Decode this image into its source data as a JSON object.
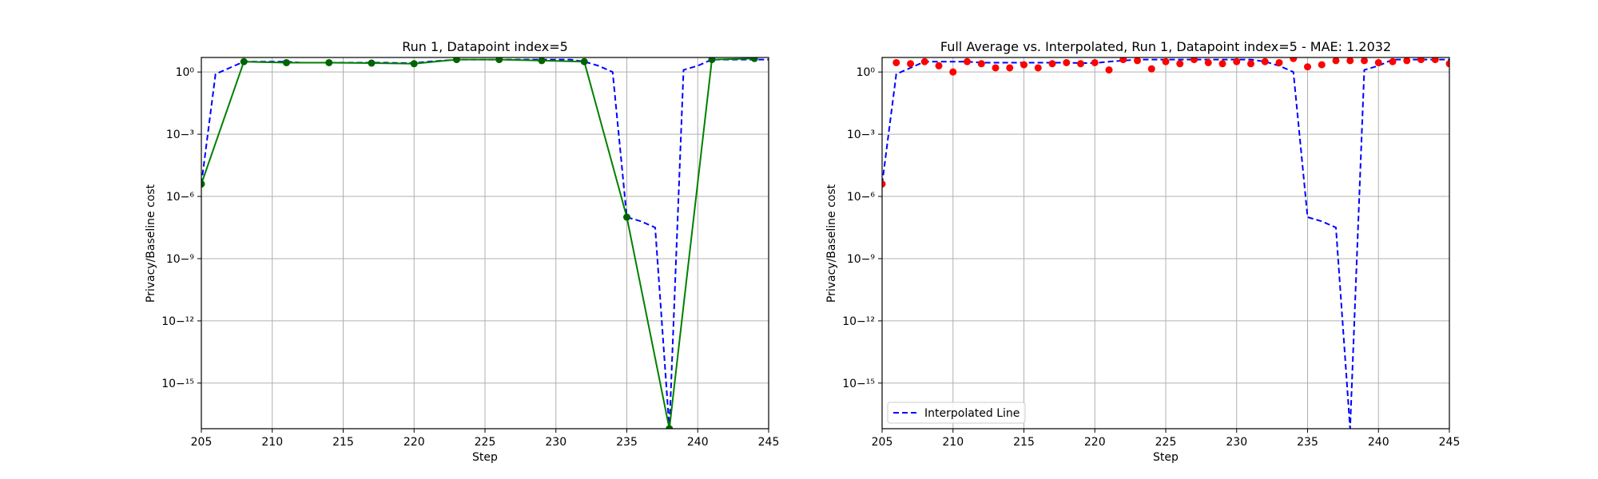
{
  "chart_data": [
    {
      "type": "line",
      "title": "Run 1, Datapoint index=5",
      "xlabel": "Step",
      "ylabel": "Privacy/Baseline cost",
      "xlim": [
        205,
        245
      ],
      "ylim_log10": [
        -17.2,
        0.7
      ],
      "yscale": "log",
      "grid": true,
      "x_ticks": [
        205,
        210,
        215,
        220,
        225,
        230,
        235,
        240,
        245
      ],
      "y_ticks_log10": [
        0,
        -3,
        -6,
        -9,
        -12,
        -15
      ],
      "colors": {
        "interpolated": "#0000ff",
        "sampled": "#008000",
        "markers": "#006400"
      },
      "series": [
        {
          "style": "dashed",
          "color": "#0000ff",
          "x": [
            205,
            206,
            207,
            208,
            209,
            210,
            211,
            212,
            213,
            214,
            215,
            216,
            217,
            218,
            219,
            220,
            221,
            222,
            223,
            224,
            225,
            226,
            227,
            228,
            229,
            230,
            231,
            232,
            233,
            234,
            235,
            236,
            237,
            238,
            239,
            240,
            241,
            242,
            243,
            244,
            245
          ],
          "y_log10": [
            -5.4,
            -0.1,
            0.2,
            0.5,
            0.5,
            0.5,
            0.5,
            0.45,
            0.45,
            0.45,
            0.45,
            0.45,
            0.45,
            0.45,
            0.43,
            0.43,
            0.5,
            0.55,
            0.6,
            0.6,
            0.6,
            0.6,
            0.6,
            0.6,
            0.6,
            0.6,
            0.6,
            0.5,
            0.3,
            0.0,
            -7.0,
            -7.2,
            -7.5,
            -17.2,
            0.1,
            0.3,
            0.6,
            0.6,
            0.6,
            0.6,
            0.6
          ]
        },
        {
          "style": "solid",
          "color": "#008000",
          "marker": "circle",
          "x": [
            205,
            208,
            211,
            214,
            217,
            220,
            223,
            226,
            229,
            232,
            235,
            238,
            241,
            244
          ],
          "y_log10": [
            -5.4,
            0.5,
            0.45,
            0.45,
            0.43,
            0.4,
            0.6,
            0.6,
            0.55,
            0.5,
            -7.0,
            -17.2,
            0.6,
            0.65
          ]
        }
      ]
    },
    {
      "type": "scatter",
      "title": "Full Average vs. Interpolated, Run 1, Datapoint index=5 - MAE: 1.2032",
      "xlabel": "Step",
      "ylabel": "Privacy/Baseline cost",
      "xlim": [
        205,
        245
      ],
      "ylim_log10": [
        -17.2,
        0.7
      ],
      "yscale": "log",
      "grid": true,
      "legend": {
        "placement": "lower-left",
        "entries": [
          "Interpolated Line"
        ]
      },
      "x_ticks": [
        205,
        210,
        215,
        220,
        225,
        230,
        235,
        240,
        245
      ],
      "y_ticks_log10": [
        0,
        -3,
        -6,
        -9,
        -12,
        -15
      ],
      "series": [
        {
          "name": "Interpolated Line",
          "style": "dashed",
          "color": "#0000ff",
          "x": [
            205,
            206,
            207,
            208,
            209,
            210,
            211,
            212,
            213,
            214,
            215,
            216,
            217,
            218,
            219,
            220,
            221,
            222,
            223,
            224,
            225,
            226,
            227,
            228,
            229,
            230,
            231,
            232,
            233,
            234,
            235,
            236,
            237,
            238,
            239,
            240,
            241,
            242,
            243,
            244,
            245
          ],
          "y_log10": [
            -5.4,
            -0.1,
            0.2,
            0.5,
            0.5,
            0.5,
            0.5,
            0.45,
            0.45,
            0.45,
            0.45,
            0.45,
            0.45,
            0.45,
            0.43,
            0.43,
            0.5,
            0.55,
            0.6,
            0.6,
            0.6,
            0.6,
            0.6,
            0.6,
            0.6,
            0.6,
            0.6,
            0.5,
            0.3,
            0.0,
            -7.0,
            -7.2,
            -7.5,
            -17.2,
            0.1,
            0.3,
            0.6,
            0.6,
            0.6,
            0.6,
            0.6
          ]
        },
        {
          "style": "markers",
          "color": "#ff0000",
          "marker": "circle",
          "x": [
            205,
            206,
            207,
            208,
            209,
            210,
            211,
            212,
            213,
            214,
            215,
            216,
            217,
            218,
            219,
            220,
            221,
            222,
            223,
            224,
            225,
            226,
            227,
            228,
            229,
            230,
            231,
            232,
            233,
            234,
            235,
            236,
            237,
            238,
            239,
            240,
            241,
            242,
            243,
            244,
            245
          ],
          "y_log10": [
            -5.4,
            0.45,
            0.4,
            0.5,
            0.3,
            0.0,
            0.5,
            0.4,
            0.2,
            0.2,
            0.35,
            0.2,
            0.4,
            0.45,
            0.4,
            0.45,
            0.1,
            0.6,
            0.55,
            0.15,
            0.5,
            0.4,
            0.6,
            0.45,
            0.4,
            0.5,
            0.4,
            0.5,
            0.45,
            0.65,
            0.25,
            0.35,
            0.55,
            0.55,
            0.55,
            0.45,
            0.5,
            0.55,
            0.6,
            0.6,
            0.4
          ]
        }
      ]
    }
  ]
}
